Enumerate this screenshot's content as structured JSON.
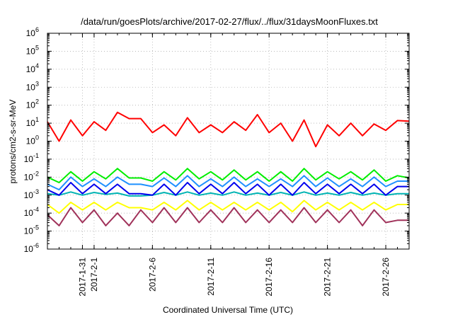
{
  "chart_data": {
    "type": "line",
    "title": "/data/run/goesPlots/archive/2017-02-27/flux/../flux/31daysMoonFluxes.txt",
    "xlabel": "Coordinated Universal Time (UTC)",
    "ylabel": "protons/cm2-s-sr-MeV",
    "y_scale": "log",
    "ylim": [
      1e-06,
      1000000.0
    ],
    "y_ticks": [
      {
        "value": 1000000.0,
        "base": "10",
        "exp": "6"
      },
      {
        "value": 100000.0,
        "base": "10",
        "exp": "5"
      },
      {
        "value": 10000.0,
        "base": "10",
        "exp": "4"
      },
      {
        "value": 1000.0,
        "base": "10",
        "exp": "3"
      },
      {
        "value": 100.0,
        "base": "10",
        "exp": "2"
      },
      {
        "value": 10.0,
        "base": "10",
        "exp": "1"
      },
      {
        "value": 1.0,
        "base": "10",
        "exp": "0"
      },
      {
        "value": 0.1,
        "base": "10",
        "exp": "-1"
      },
      {
        "value": 0.01,
        "base": "10",
        "exp": "-2"
      },
      {
        "value": 0.001,
        "base": "10",
        "exp": "-3"
      },
      {
        "value": 0.0001,
        "base": "10",
        "exp": "-4"
      },
      {
        "value": 1e-05,
        "base": "10",
        "exp": "-5"
      },
      {
        "value": 1e-06,
        "base": "10",
        "exp": "-6"
      }
    ],
    "xlim": [
      "2017-01-28",
      "2017-02-28"
    ],
    "x_ticks": [
      {
        "date": "2017-01-31",
        "label": "2017-1-31"
      },
      {
        "date": "2017-02-01",
        "label": "2017-2-1"
      },
      {
        "date": "2017-02-06",
        "label": "2017-2-6"
      },
      {
        "date": "2017-02-11",
        "label": "2017-2-11"
      },
      {
        "date": "2017-02-16",
        "label": "2017-2-16"
      },
      {
        "date": "2017-02-21",
        "label": "2017-2-21"
      },
      {
        "date": "2017-02-26",
        "label": "2017-2-26"
      }
    ],
    "grid": true,
    "series": [
      {
        "color": "#ff0000",
        "values": [
          [
            "2017-01-28",
            12
          ],
          [
            "2017-01-29",
            1
          ],
          [
            "2017-01-30",
            15
          ],
          [
            "2017-01-31",
            2
          ],
          [
            "2017-02-01",
            12
          ],
          [
            "2017-02-02",
            4
          ],
          [
            "2017-02-03",
            40
          ],
          [
            "2017-02-04",
            18
          ],
          [
            "2017-02-05",
            18
          ],
          [
            "2017-02-06",
            3
          ],
          [
            "2017-02-07",
            8
          ],
          [
            "2017-02-08",
            2
          ],
          [
            "2017-02-09",
            20
          ],
          [
            "2017-02-10",
            3
          ],
          [
            "2017-02-11",
            8
          ],
          [
            "2017-02-12",
            3
          ],
          [
            "2017-02-13",
            12
          ],
          [
            "2017-02-14",
            4
          ],
          [
            "2017-02-15",
            30
          ],
          [
            "2017-02-16",
            3
          ],
          [
            "2017-02-17",
            10
          ],
          [
            "2017-02-18",
            1
          ],
          [
            "2017-02-19",
            15
          ],
          [
            "2017-02-20",
            0.5
          ],
          [
            "2017-02-21",
            8
          ],
          [
            "2017-02-22",
            2
          ],
          [
            "2017-02-23",
            10
          ],
          [
            "2017-02-24",
            2
          ],
          [
            "2017-02-25",
            9
          ],
          [
            "2017-02-26",
            4
          ],
          [
            "2017-02-27",
            14
          ],
          [
            "2017-02-28",
            13
          ]
        ]
      },
      {
        "color": "#00ee00",
        "values": [
          [
            "2017-01-28",
            0.01
          ],
          [
            "2017-01-29",
            0.005
          ],
          [
            "2017-01-30",
            0.02
          ],
          [
            "2017-01-31",
            0.006
          ],
          [
            "2017-02-01",
            0.02
          ],
          [
            "2017-02-02",
            0.008
          ],
          [
            "2017-02-03",
            0.03
          ],
          [
            "2017-02-04",
            0.009
          ],
          [
            "2017-02-05",
            0.009
          ],
          [
            "2017-02-06",
            0.006
          ],
          [
            "2017-02-07",
            0.02
          ],
          [
            "2017-02-08",
            0.007
          ],
          [
            "2017-02-09",
            0.03
          ],
          [
            "2017-02-10",
            0.008
          ],
          [
            "2017-02-11",
            0.02
          ],
          [
            "2017-02-12",
            0.007
          ],
          [
            "2017-02-13",
            0.025
          ],
          [
            "2017-02-14",
            0.007
          ],
          [
            "2017-02-15",
            0.02
          ],
          [
            "2017-02-16",
            0.006
          ],
          [
            "2017-02-17",
            0.02
          ],
          [
            "2017-02-18",
            0.006
          ],
          [
            "2017-02-19",
            0.03
          ],
          [
            "2017-02-20",
            0.007
          ],
          [
            "2017-02-21",
            0.02
          ],
          [
            "2017-02-22",
            0.008
          ],
          [
            "2017-02-23",
            0.02
          ],
          [
            "2017-02-24",
            0.007
          ],
          [
            "2017-02-25",
            0.025
          ],
          [
            "2017-02-26",
            0.006
          ],
          [
            "2017-02-27",
            0.012
          ],
          [
            "2017-02-28",
            0.009
          ]
        ]
      },
      {
        "color": "#1e90ff",
        "values": [
          [
            "2017-01-28",
            0.004
          ],
          [
            "2017-01-29",
            0.002
          ],
          [
            "2017-01-30",
            0.01
          ],
          [
            "2017-01-31",
            0.003
          ],
          [
            "2017-02-01",
            0.008
          ],
          [
            "2017-02-02",
            0.003
          ],
          [
            "2017-02-03",
            0.01
          ],
          [
            "2017-02-04",
            0.004
          ],
          [
            "2017-02-05",
            0.004
          ],
          [
            "2017-02-06",
            0.003
          ],
          [
            "2017-02-07",
            0.009
          ],
          [
            "2017-02-08",
            0.003
          ],
          [
            "2017-02-09",
            0.012
          ],
          [
            "2017-02-10",
            0.003
          ],
          [
            "2017-02-11",
            0.008
          ],
          [
            "2017-02-12",
            0.003
          ],
          [
            "2017-02-13",
            0.01
          ],
          [
            "2017-02-14",
            0.003
          ],
          [
            "2017-02-15",
            0.008
          ],
          [
            "2017-02-16",
            0.003
          ],
          [
            "2017-02-17",
            0.008
          ],
          [
            "2017-02-18",
            0.003
          ],
          [
            "2017-02-19",
            0.012
          ],
          [
            "2017-02-20",
            0.003
          ],
          [
            "2017-02-21",
            0.009
          ],
          [
            "2017-02-22",
            0.003
          ],
          [
            "2017-02-23",
            0.008
          ],
          [
            "2017-02-24",
            0.003
          ],
          [
            "2017-02-25",
            0.01
          ],
          [
            "2017-02-26",
            0.003
          ],
          [
            "2017-02-27",
            0.006
          ],
          [
            "2017-02-28",
            0.006
          ]
        ]
      },
      {
        "color": "#0000ee",
        "values": [
          [
            "2017-01-28",
            0.002
          ],
          [
            "2017-01-29",
            0.001
          ],
          [
            "2017-01-30",
            0.005
          ],
          [
            "2017-01-31",
            0.0012
          ],
          [
            "2017-02-01",
            0.004
          ],
          [
            "2017-02-02",
            0.0012
          ],
          [
            "2017-02-03",
            0.004
          ],
          [
            "2017-02-04",
            0.0012
          ],
          [
            "2017-02-05",
            0.0012
          ],
          [
            "2017-02-06",
            0.001
          ],
          [
            "2017-02-07",
            0.004
          ],
          [
            "2017-02-08",
            0.001
          ],
          [
            "2017-02-09",
            0.005
          ],
          [
            "2017-02-10",
            0.0012
          ],
          [
            "2017-02-11",
            0.004
          ],
          [
            "2017-02-12",
            0.0012
          ],
          [
            "2017-02-13",
            0.005
          ],
          [
            "2017-02-14",
            0.0012
          ],
          [
            "2017-02-15",
            0.004
          ],
          [
            "2017-02-16",
            0.001
          ],
          [
            "2017-02-17",
            0.004
          ],
          [
            "2017-02-18",
            0.001
          ],
          [
            "2017-02-19",
            0.005
          ],
          [
            "2017-02-20",
            0.0012
          ],
          [
            "2017-02-21",
            0.004
          ],
          [
            "2017-02-22",
            0.0012
          ],
          [
            "2017-02-23",
            0.004
          ],
          [
            "2017-02-24",
            0.0012
          ],
          [
            "2017-02-25",
            0.004
          ],
          [
            "2017-02-26",
            0.001
          ],
          [
            "2017-02-27",
            0.003
          ],
          [
            "2017-02-28",
            0.003
          ]
        ]
      },
      {
        "color": "#00b3b3",
        "values": [
          [
            "2017-01-28",
            0.0012
          ],
          [
            "2017-01-29",
            0.001
          ],
          [
            "2017-01-30",
            0.0015
          ],
          [
            "2017-01-31",
            0.001
          ],
          [
            "2017-02-01",
            0.0014
          ],
          [
            "2017-02-02",
            0.0011
          ],
          [
            "2017-02-03",
            0.0013
          ],
          [
            "2017-02-04",
            0.0009
          ],
          [
            "2017-02-05",
            0.0009
          ],
          [
            "2017-02-06",
            0.001
          ],
          [
            "2017-02-07",
            0.0014
          ],
          [
            "2017-02-08",
            0.001
          ],
          [
            "2017-02-09",
            0.0015
          ],
          [
            "2017-02-10",
            0.001
          ],
          [
            "2017-02-11",
            0.0013
          ],
          [
            "2017-02-12",
            0.001
          ],
          [
            "2017-02-13",
            0.0015
          ],
          [
            "2017-02-14",
            0.001
          ],
          [
            "2017-02-15",
            0.0013
          ],
          [
            "2017-02-16",
            0.001
          ],
          [
            "2017-02-17",
            0.0014
          ],
          [
            "2017-02-18",
            0.001
          ],
          [
            "2017-02-19",
            0.0015
          ],
          [
            "2017-02-20",
            0.001
          ],
          [
            "2017-02-21",
            0.0013
          ],
          [
            "2017-02-22",
            0.001
          ],
          [
            "2017-02-23",
            0.0014
          ],
          [
            "2017-02-24",
            0.001
          ],
          [
            "2017-02-25",
            0.0013
          ],
          [
            "2017-02-26",
            0.001
          ],
          [
            "2017-02-27",
            0.0012
          ],
          [
            "2017-02-28",
            0.0012
          ]
        ]
      },
      {
        "color": "#ffff00",
        "values": [
          [
            "2017-01-28",
            0.0003
          ],
          [
            "2017-01-29",
            0.0001
          ],
          [
            "2017-01-30",
            0.0004
          ],
          [
            "2017-01-31",
            0.00015
          ],
          [
            "2017-02-01",
            0.0004
          ],
          [
            "2017-02-02",
            0.00015
          ],
          [
            "2017-02-03",
            0.0004
          ],
          [
            "2017-02-04",
            0.0002
          ],
          [
            "2017-02-05",
            0.0002
          ],
          [
            "2017-02-06",
            0.00015
          ],
          [
            "2017-02-07",
            0.0004
          ],
          [
            "2017-02-08",
            0.00015
          ],
          [
            "2017-02-09",
            0.0005
          ],
          [
            "2017-02-10",
            0.00015
          ],
          [
            "2017-02-11",
            0.0004
          ],
          [
            "2017-02-12",
            0.00015
          ],
          [
            "2017-02-13",
            0.0004
          ],
          [
            "2017-02-14",
            0.00015
          ],
          [
            "2017-02-15",
            0.0004
          ],
          [
            "2017-02-16",
            0.00015
          ],
          [
            "2017-02-17",
            0.0004
          ],
          [
            "2017-02-18",
            0.00012
          ],
          [
            "2017-02-19",
            0.0005
          ],
          [
            "2017-02-20",
            0.00015
          ],
          [
            "2017-02-21",
            0.0004
          ],
          [
            "2017-02-22",
            0.00015
          ],
          [
            "2017-02-23",
            0.0004
          ],
          [
            "2017-02-24",
            0.00015
          ],
          [
            "2017-02-25",
            0.0004
          ],
          [
            "2017-02-26",
            0.00015
          ],
          [
            "2017-02-27",
            0.0003
          ],
          [
            "2017-02-28",
            0.0003
          ]
        ]
      },
      {
        "color": "#a0325a",
        "values": [
          [
            "2017-01-28",
            8e-05
          ],
          [
            "2017-01-29",
            2e-05
          ],
          [
            "2017-01-30",
            0.0002
          ],
          [
            "2017-01-31",
            3e-05
          ],
          [
            "2017-02-01",
            0.00015
          ],
          [
            "2017-02-02",
            2e-05
          ],
          [
            "2017-02-03",
            0.0001
          ],
          [
            "2017-02-04",
            2e-05
          ],
          [
            "2017-02-05",
            0.00015
          ],
          [
            "2017-02-06",
            3e-05
          ],
          [
            "2017-02-07",
            0.0002
          ],
          [
            "2017-02-08",
            3e-05
          ],
          [
            "2017-02-09",
            0.0002
          ],
          [
            "2017-02-10",
            3e-05
          ],
          [
            "2017-02-11",
            0.00015
          ],
          [
            "2017-02-12",
            3e-05
          ],
          [
            "2017-02-13",
            0.0002
          ],
          [
            "2017-02-14",
            3e-05
          ],
          [
            "2017-02-15",
            0.00015
          ],
          [
            "2017-02-16",
            3e-05
          ],
          [
            "2017-02-17",
            0.00015
          ],
          [
            "2017-02-18",
            3e-05
          ],
          [
            "2017-02-19",
            0.0002
          ],
          [
            "2017-02-20",
            3e-05
          ],
          [
            "2017-02-21",
            0.00015
          ],
          [
            "2017-02-22",
            3e-05
          ],
          [
            "2017-02-23",
            0.00015
          ],
          [
            "2017-02-24",
            2e-05
          ],
          [
            "2017-02-25",
            0.00015
          ],
          [
            "2017-02-26",
            3e-05
          ],
          [
            "2017-02-27",
            4e-05
          ],
          [
            "2017-02-28",
            4e-05
          ]
        ]
      }
    ]
  }
}
